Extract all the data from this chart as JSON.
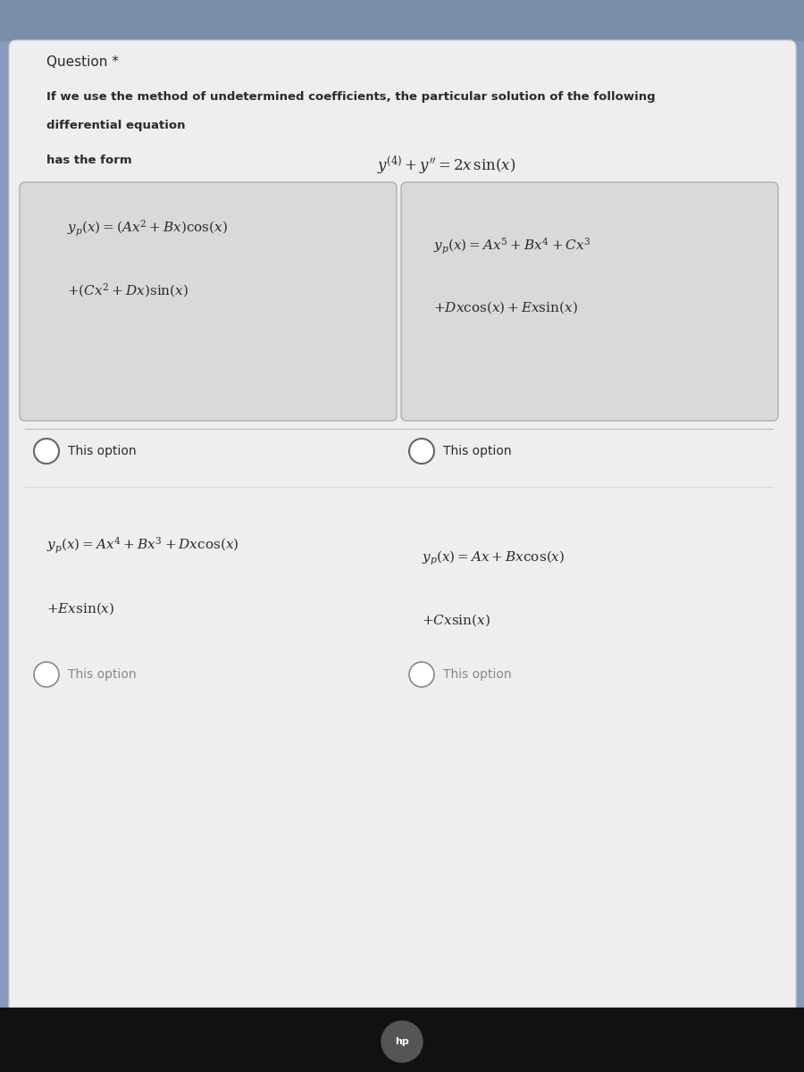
{
  "bg_outer": "#8899bb",
  "bg_top_bar": "#9aaabb",
  "bg_card": "#ebebeb",
  "bg_option_box": "#d8d8d8",
  "title": "Question *",
  "intro_bold": "If we use the method of undetermined coefficients, the particular solution of the following",
  "intro_line2": "differential equation",
  "equation": "$y^{(4)} + y'' = 2x\\,\\sin(x)$",
  "has_the_form": "has the form",
  "option1_line1": "$y_p(x) = (Ax^2 + Bx)\\cos(x)$",
  "option1_line2": "$+(Cx^2 + Dx)\\sin(x)$",
  "option2_line1": "$y_p(x) = Ax^5 + Bx^4 + Cx^3$",
  "option2_line2": "$+Dx\\cos(x) + Ex\\sin(x)$",
  "option3_line1": "$y_p(x) = Ax^4 + Bx^3 + Dx\\cos(x)$",
  "option3_line2": "$+Ex\\sin(x)$",
  "option4_line1": "$y_p(x) = Ax + Bx\\cos(x)$",
  "option4_line2": "$+Cx\\sin(x)$",
  "this_option": "This option",
  "dark_text": "#2a2a2a",
  "radio_color": "#555555",
  "hp_color": "#444444"
}
